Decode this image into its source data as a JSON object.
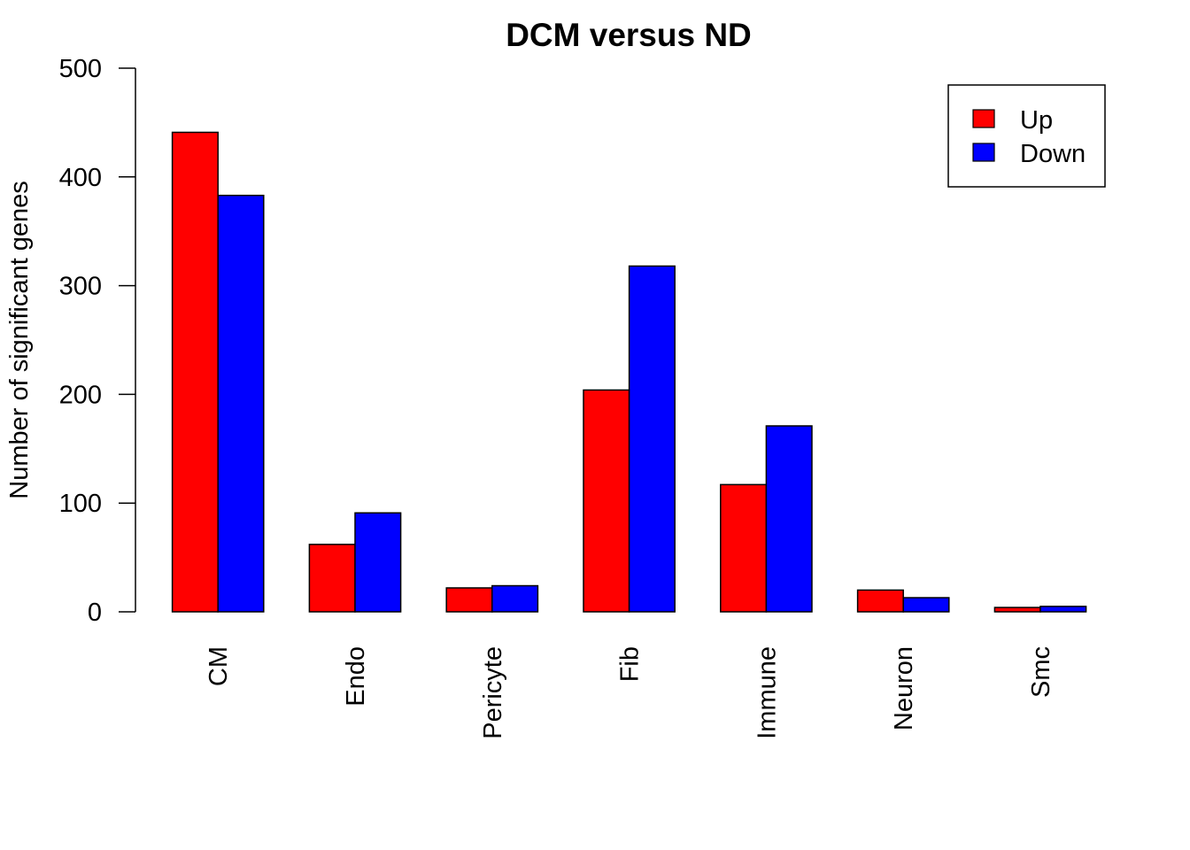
{
  "chart_data": {
    "type": "bar",
    "title": "DCM versus ND",
    "xlabel": "",
    "ylabel": "Number of significant genes",
    "ylim": [
      0,
      500
    ],
    "yticks": [
      0,
      100,
      200,
      300,
      400,
      500
    ],
    "categories": [
      "CM",
      "Endo",
      "Pericyte",
      "Fib",
      "Immune",
      "Neuron",
      "Smc"
    ],
    "series": [
      {
        "name": "Up",
        "color": "#ff0000",
        "values": [
          441,
          62,
          22,
          204,
          117,
          20,
          4
        ]
      },
      {
        "name": "Down",
        "color": "#0000ff",
        "values": [
          383,
          91,
          24,
          318,
          171,
          13,
          5
        ]
      }
    ],
    "legend_position": "top-right",
    "grid": false
  }
}
